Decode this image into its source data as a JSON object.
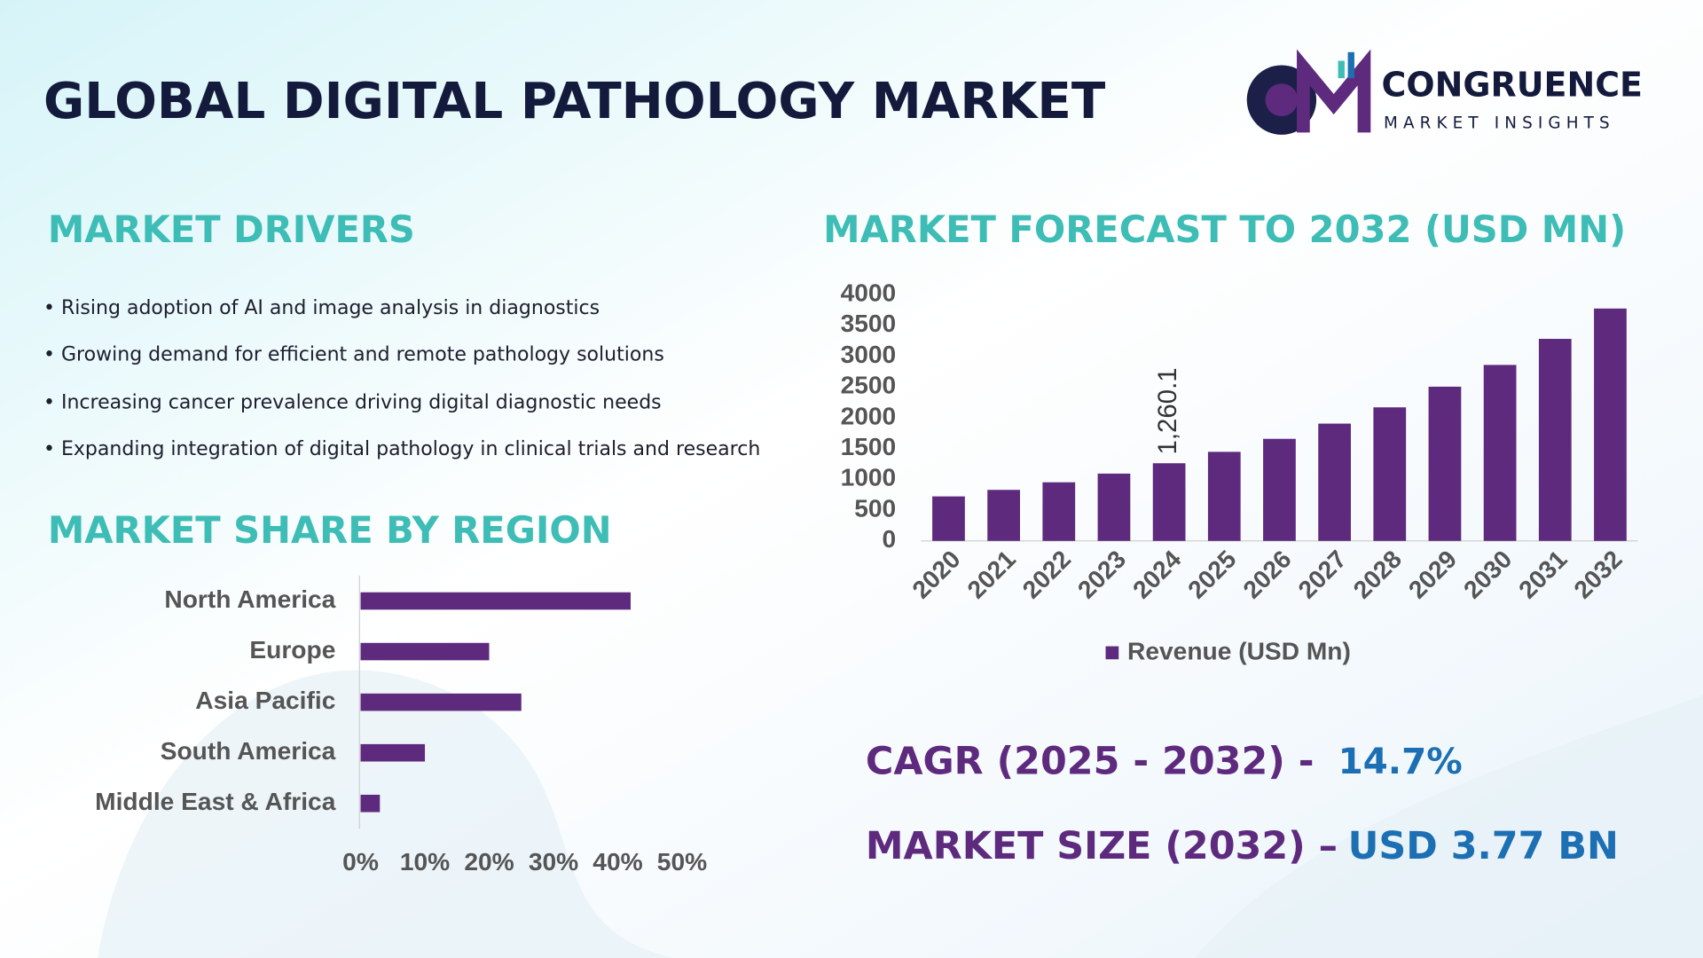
{
  "header": {
    "title": "GLOBAL DIGITAL PATHOLOGY MARKET",
    "logo_name": "CONGRUENCE",
    "logo_tagline": "MARKET INSIGHTS"
  },
  "drivers": {
    "heading": "MARKET DRIVERS",
    "items": [
      "• Rising adoption of AI and image analysis in diagnostics",
      "• Growing demand for efficient and remote pathology solutions",
      "• Increasing cancer prevalence driving digital diagnostic needs",
      "• Expanding integration of digital pathology in clinical trials and research"
    ]
  },
  "chart_data": [
    {
      "type": "bar",
      "title": "MARKET FORECAST TO 2032 (USD MN)",
      "categories": [
        "2020",
        "2021",
        "2022",
        "2023",
        "2024",
        "2025",
        "2026",
        "2027",
        "2028",
        "2029",
        "2030",
        "2031",
        "2032"
      ],
      "series": [
        {
          "name": "Revenue (USD Mn)",
          "color": "#5e2a7e",
          "values": [
            722,
            828,
            951,
            1092,
            1260.1,
            1445,
            1656,
            1903,
            2167,
            2502,
            2855,
            3278,
            3770
          ],
          "value_labels": [
            null,
            null,
            null,
            null,
            "1,260.1",
            null,
            null,
            null,
            null,
            null,
            null,
            null,
            null
          ]
        }
      ],
      "ylim": [
        0,
        4000
      ],
      "yticks": [
        0,
        500,
        1000,
        1500,
        2000,
        2500,
        3000,
        3500,
        4000
      ],
      "legend": "bottom"
    },
    {
      "type": "bar",
      "orientation": "horizontal",
      "title": "MARKET SHARE BY REGION",
      "categories": [
        "North America",
        "Europe",
        "Asia Pacific",
        "South America",
        "Middle East & Africa"
      ],
      "values": [
        42,
        20,
        25,
        10,
        3
      ],
      "color": "#5e2a7e",
      "xlim": [
        0,
        50
      ],
      "xticks": [
        {
          "value": 0,
          "label": "0%"
        },
        {
          "value": 10,
          "label": "10%"
        },
        {
          "value": 20,
          "label": "20%"
        },
        {
          "value": 30,
          "label": "30%"
        },
        {
          "value": 40,
          "label": "40%"
        },
        {
          "value": 50,
          "label": "50%"
        }
      ]
    }
  ],
  "stats": {
    "cagr_label": "CAGR (2025 - 2032) -",
    "cagr_value": "14.7%",
    "size_label": "MARKET SIZE (2032) –",
    "size_value": "USD 3.77 BN"
  }
}
